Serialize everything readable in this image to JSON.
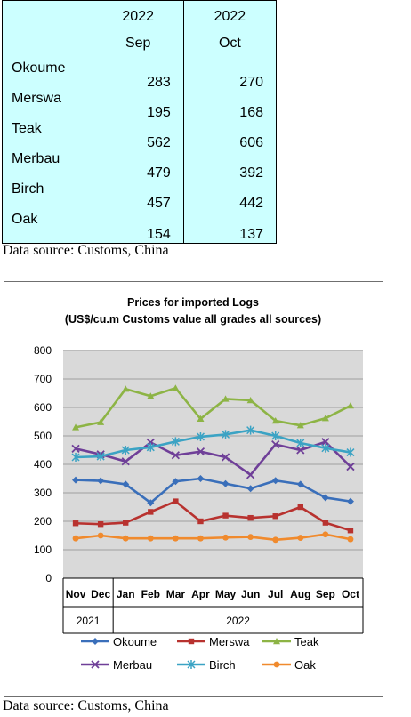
{
  "table": {
    "header": {
      "col1_year": "2022",
      "col1_month": "Sep",
      "col2_year": "2022",
      "col2_month": "Oct"
    },
    "rows": [
      {
        "name": "Okoume",
        "sep": "283",
        "oct": "270"
      },
      {
        "name": "Merswa",
        "sep": "195",
        "oct": "168"
      },
      {
        "name": "Teak",
        "sep": "562",
        "oct": "606"
      },
      {
        "name": "Merbau",
        "sep": "479",
        "oct": "392"
      },
      {
        "name": "Birch",
        "sep": "457",
        "oct": "442"
      },
      {
        "name": "Oak",
        "sep": "154",
        "oct": "137"
      }
    ],
    "source": "Data source: Customs, China"
  },
  "chart_source": "Data source: Customs, China",
  "chart_data": {
    "type": "line",
    "title": "Prices for imported Logs",
    "subtitle": "(US$/cu.m Customs value all grades all sources)",
    "categories": [
      "Nov",
      "Dec",
      "Jan",
      "Feb",
      "Mar",
      "Apr",
      "May",
      "Jun",
      "Jul",
      "Aug",
      "Sep",
      "Oct"
    ],
    "year_groups": [
      {
        "label": "2021",
        "span": 2
      },
      {
        "label": "2022",
        "span": 10
      }
    ],
    "ylim": [
      0,
      800
    ],
    "yticks": [
      "0",
      "100",
      "200",
      "300",
      "400",
      "500",
      "600",
      "700",
      "800"
    ],
    "grid": true,
    "legend_position": "bottom",
    "series": [
      {
        "name": "Okoume",
        "color": "#3a6fba",
        "marker": "diamond",
        "values": [
          345,
          342,
          330,
          265,
          340,
          350,
          332,
          315,
          343,
          330,
          283,
          270
        ]
      },
      {
        "name": "Merswa",
        "color": "#b8322f",
        "marker": "square",
        "values": [
          193,
          190,
          195,
          233,
          270,
          200,
          220,
          212,
          218,
          250,
          195,
          168
        ]
      },
      {
        "name": "Teak",
        "color": "#8db445",
        "marker": "triangle",
        "values": [
          530,
          548,
          665,
          640,
          668,
          560,
          630,
          625,
          553,
          537,
          562,
          606
        ]
      },
      {
        "name": "Merbau",
        "color": "#6f3f98",
        "marker": "x",
        "values": [
          455,
          435,
          410,
          477,
          432,
          445,
          425,
          363,
          470,
          450,
          479,
          392
        ]
      },
      {
        "name": "Birch",
        "color": "#3ba3c4",
        "marker": "star",
        "values": [
          425,
          428,
          450,
          460,
          480,
          497,
          505,
          520,
          500,
          475,
          457,
          442
        ]
      },
      {
        "name": "Oak",
        "color": "#f08a2d",
        "marker": "circle",
        "values": [
          140,
          150,
          140,
          140,
          140,
          140,
          143,
          145,
          135,
          142,
          154,
          137
        ]
      }
    ]
  }
}
